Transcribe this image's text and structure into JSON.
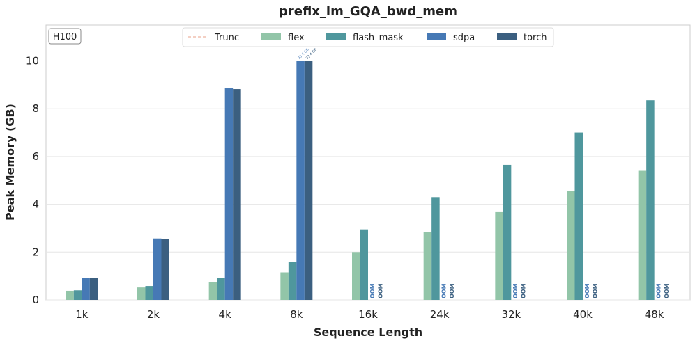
{
  "chart_data": {
    "type": "bar",
    "title": "prefix_lm_GQA_bwd_mem",
    "xlabel": "Sequence Length",
    "ylabel": "Peak Memory (GB)",
    "ylim": [
      0,
      11.5
    ],
    "yticks": [
      0,
      2,
      4,
      6,
      8,
      10
    ],
    "grid": true,
    "legend_position": "top-center",
    "badge": "H100",
    "truncation": {
      "label": "Trunc",
      "value": 10,
      "color": "#e8a08a"
    },
    "categories": [
      "1k",
      "2k",
      "4k",
      "8k",
      "16k",
      "24k",
      "32k",
      "40k",
      "48k"
    ],
    "series": [
      {
        "name": "flex",
        "color": "#92c5a8",
        "values": [
          0.38,
          0.52,
          0.73,
          1.15,
          2.0,
          2.85,
          3.7,
          4.55,
          5.4
        ]
      },
      {
        "name": "flash_mask",
        "color": "#4f979d",
        "values": [
          0.4,
          0.58,
          0.92,
          1.6,
          2.95,
          4.3,
          5.65,
          7.0,
          8.35
        ]
      },
      {
        "name": "sdpa",
        "color": "#4679b5",
        "values": [
          0.93,
          2.57,
          8.85,
          10,
          null,
          null,
          null,
          null,
          null
        ]
      },
      {
        "name": "torch",
        "color": "#3b5f80",
        "values": [
          0.93,
          2.56,
          8.82,
          10,
          null,
          null,
          null,
          null,
          null
        ]
      }
    ],
    "oom_label": "OOM",
    "bar_annotations": [
      {
        "category": "8k",
        "series": "sdpa",
        "text": "33.4 GB"
      },
      {
        "category": "8k",
        "series": "torch",
        "text": "33.4 GB"
      }
    ]
  }
}
